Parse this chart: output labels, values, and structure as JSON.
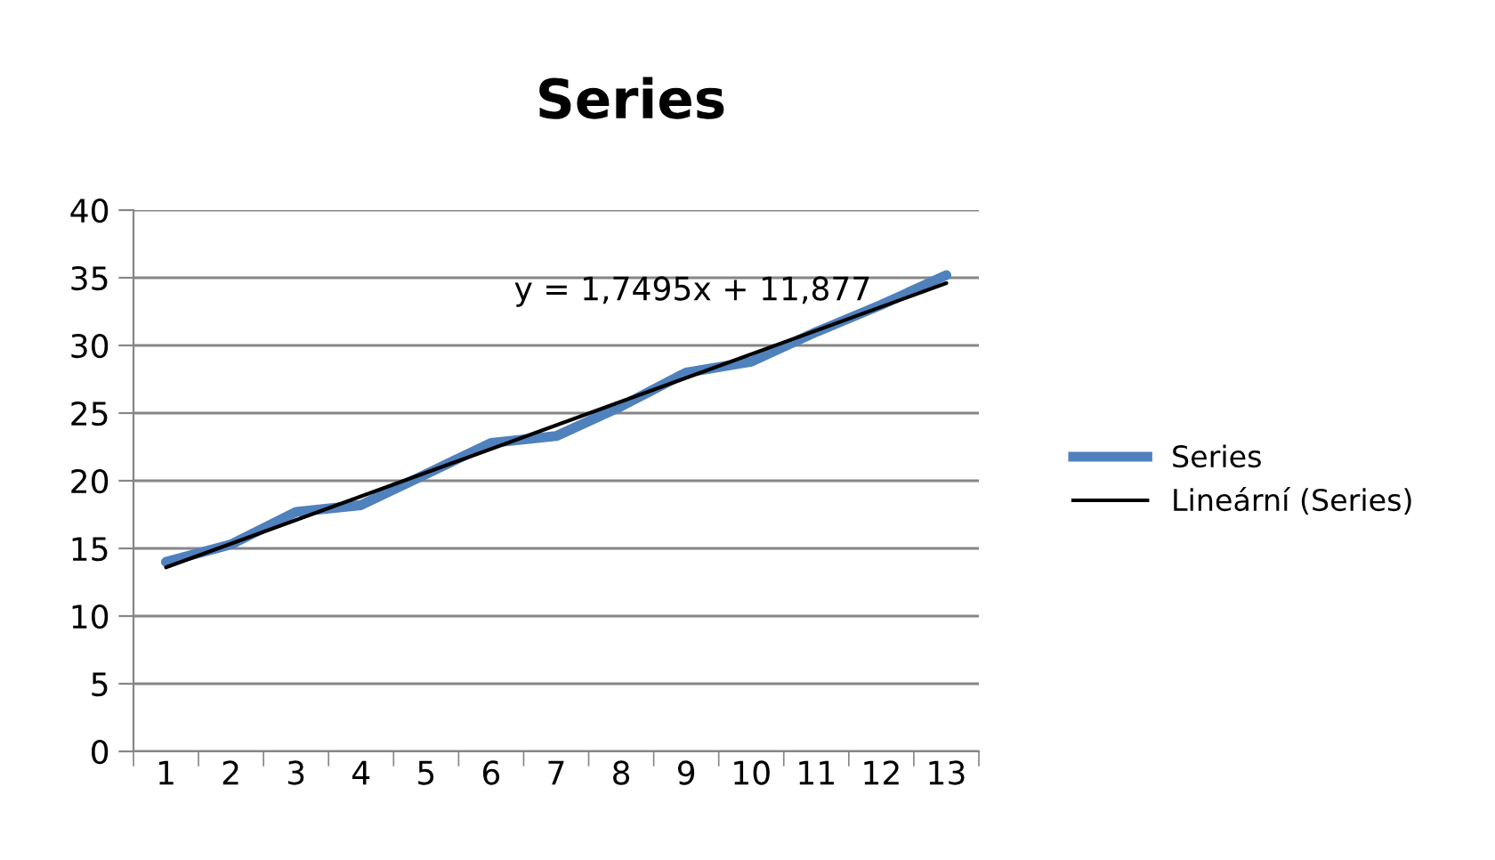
{
  "chart_data": {
    "type": "line",
    "title": "Series",
    "categories": [
      "1",
      "2",
      "3",
      "4",
      "5",
      "6",
      "7",
      "8",
      "9",
      "10",
      "11",
      "12",
      "13"
    ],
    "series": [
      {
        "name": "Series",
        "color": "#4f81bd",
        "values": [
          14,
          15.3,
          17.7,
          18.2,
          20.5,
          22.8,
          23.3,
          25.5,
          28,
          28.8,
          31,
          33,
          35.2
        ]
      },
      {
        "name": "Lineární (Series)",
        "color": "#000000",
        "x": [
          "1",
          "13"
        ],
        "values": [
          13.6,
          34.6
        ]
      }
    ],
    "ylim": [
      0,
      40
    ],
    "yticks": [
      0,
      5,
      10,
      15,
      20,
      25,
      30,
      35,
      40
    ],
    "grid": "y",
    "legend": "right",
    "marker": "none",
    "annotations": [
      "y = 1,7495x + 11,877"
    ]
  }
}
